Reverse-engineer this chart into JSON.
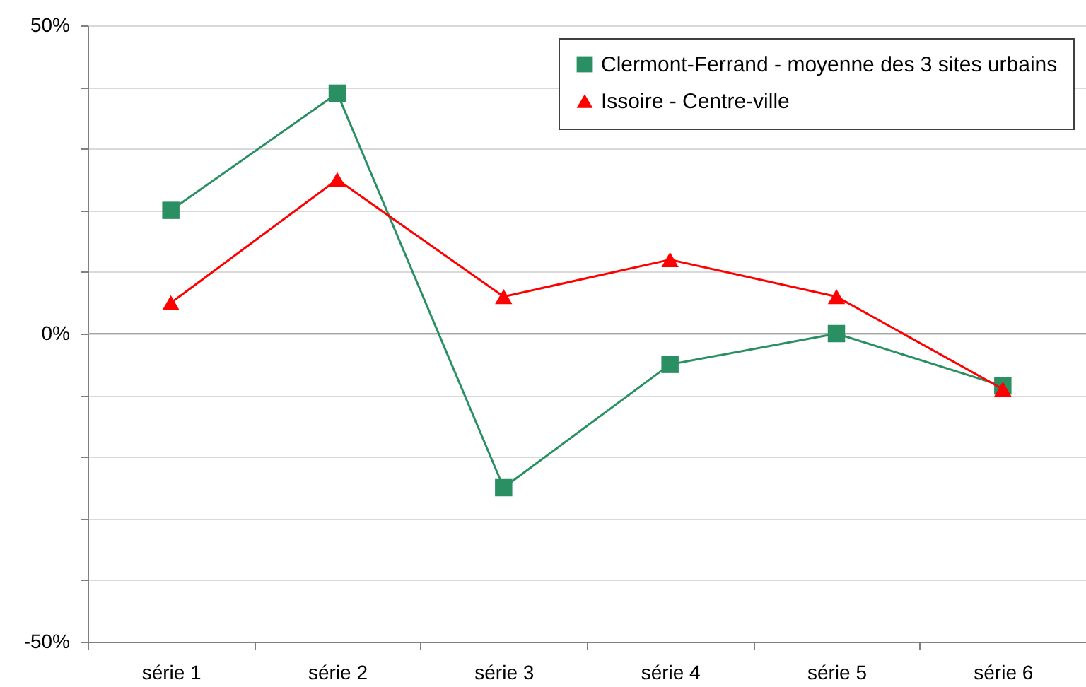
{
  "chart_data": {
    "type": "line",
    "categories": [
      "série 1",
      "série 2",
      "série 3",
      "série 4",
      "série 5",
      "série 6"
    ],
    "series": [
      {
        "name": "Clermont-Ferrand - moyenne des 3 sites urbains",
        "color": "#2a9063",
        "marker": "square",
        "values": [
          20,
          39,
          -25,
          -5,
          0,
          -8.5
        ]
      },
      {
        "name": "Issoire - Centre-ville",
        "color": "#ff0000",
        "marker": "triangle",
        "values": [
          5,
          25,
          6,
          12,
          6,
          -9
        ]
      }
    ],
    "ylim": [
      -50,
      50
    ],
    "yticks": [
      {
        "value": -50,
        "label": "-50%"
      },
      {
        "value": -40,
        "label": null
      },
      {
        "value": -30,
        "label": null
      },
      {
        "value": -20,
        "label": null
      },
      {
        "value": -10,
        "label": null
      },
      {
        "value": 0,
        "label": "0%"
      },
      {
        "value": 10,
        "label": null
      },
      {
        "value": 20,
        "label": null
      },
      {
        "value": 30,
        "label": null
      },
      {
        "value": 40,
        "label": null
      },
      {
        "value": 50,
        "label": "50%"
      }
    ],
    "grid": "y",
    "legend": "top right",
    "ref_lines": [
      {
        "axis": "y",
        "value": 0,
        "color": "#a6a6a6"
      }
    ]
  }
}
